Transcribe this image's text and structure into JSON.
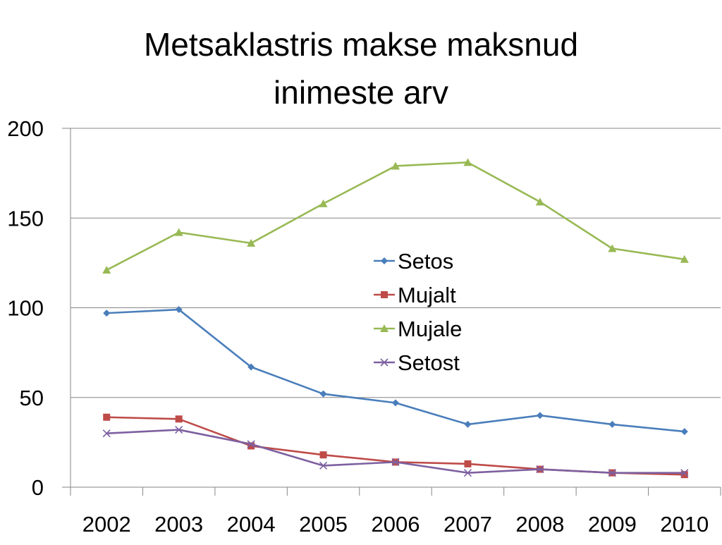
{
  "chart_data": {
    "type": "line",
    "title_lines": [
      "Metsaklastris makse maksnud",
      "inimeste arv"
    ],
    "xlabel": "",
    "ylabel": "",
    "categories": [
      "2002",
      "2003",
      "2004",
      "2005",
      "2006",
      "2007",
      "2008",
      "2009",
      "2010"
    ],
    "ylim": [
      0,
      200
    ],
    "yticks": [
      0,
      50,
      100,
      150,
      200
    ],
    "grid": true,
    "legend_position": "center-right",
    "series": [
      {
        "name": "Setos",
        "color": "#4a7ebb",
        "marker": "diamond",
        "values": [
          97,
          99,
          67,
          52,
          47,
          35,
          40,
          35,
          31
        ]
      },
      {
        "name": "Mujalt",
        "color": "#be4b48",
        "marker": "square",
        "values": [
          39,
          38,
          23,
          18,
          14,
          13,
          10,
          8,
          7
        ]
      },
      {
        "name": "Mujale",
        "color": "#98b954",
        "marker": "triangle",
        "values": [
          121,
          142,
          136,
          158,
          179,
          181,
          159,
          133,
          127
        ]
      },
      {
        "name": "Setost",
        "color": "#7d60a0",
        "marker": "x",
        "values": [
          30,
          32,
          24,
          12,
          14,
          8,
          10,
          8,
          8
        ]
      }
    ]
  }
}
